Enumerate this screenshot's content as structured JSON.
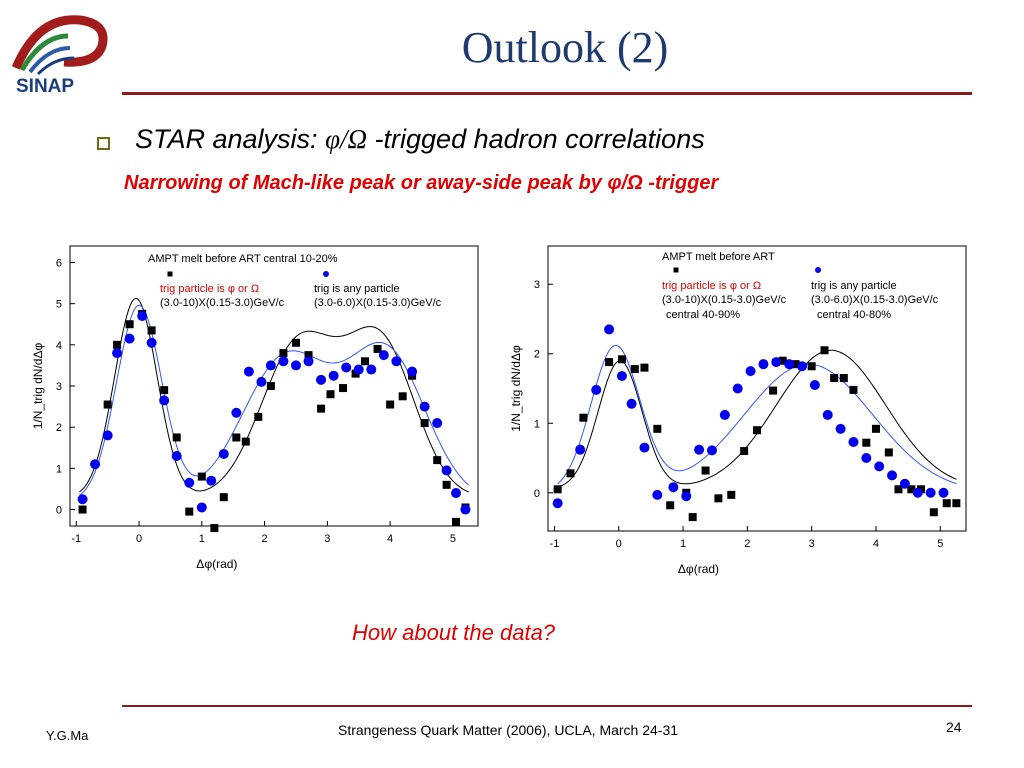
{
  "slide": {
    "title": "Outlook (2)",
    "logo_text": "SINAP",
    "bullet": {
      "prefix": "STAR analysis: ",
      "symbol": "φ/Ω",
      "suffix": " -trigged hadron correlations"
    },
    "subline": "Narrowing of Mach-like peak or away-side peak by φ/Ω -trigger",
    "question": "How about the data?",
    "footer": {
      "author": "Y.G.Ma",
      "conference": "Strangeness Quark Matter (2006),  UCLA, March 24-31",
      "page": "24"
    }
  },
  "colors": {
    "title": "#1f3a6e",
    "rule": "#8b1a1a",
    "highlight": "#e00000",
    "square_series": "#000000",
    "circle_series": "#0000ee"
  },
  "chart_data": [
    {
      "type": "scatter",
      "title": "AMPT melt before ART central 10-20%",
      "xlabel": "Δφ(rad)",
      "ylabel": "1/N_trig dN/dΔφ",
      "xlim": [
        -1.1,
        5.4
      ],
      "ylim": [
        -0.4,
        6.4
      ],
      "xticks": [
        -1,
        0,
        1,
        2,
        3,
        4,
        5
      ],
      "yticks": [
        0,
        1,
        2,
        3,
        4,
        5,
        6
      ],
      "legend": [
        {
          "marker": "square",
          "name": "trig particle is φ or Ω",
          "detail": "(3.0-10)X(0.15-3.0)GeV/c",
          "detail2": ""
        },
        {
          "marker": "circle",
          "name": "trig is any particle",
          "detail": "(3.0-6.0)X(0.15-3.0)GeV/c",
          "detail2": ""
        }
      ],
      "series": [
        {
          "name": "trig particle is φ or Ω",
          "marker": "square",
          "color": "#000000",
          "x": [
            -0.9,
            -0.5,
            -0.35,
            -0.15,
            0.05,
            0.2,
            0.4,
            0.6,
            0.8,
            1.0,
            1.2,
            1.35,
            1.55,
            1.7,
            1.9,
            2.1,
            2.3,
            2.5,
            2.7,
            2.9,
            3.05,
            3.25,
            3.45,
            3.6,
            3.8,
            4.0,
            4.2,
            4.35,
            4.55,
            4.75,
            4.9,
            5.05,
            5.2
          ],
          "y": [
            0.0,
            2.55,
            4.0,
            4.5,
            4.75,
            4.35,
            2.9,
            1.75,
            -0.05,
            0.8,
            -0.45,
            0.3,
            1.75,
            1.65,
            2.25,
            3.0,
            3.8,
            4.05,
            3.75,
            2.45,
            2.8,
            2.95,
            3.3,
            3.6,
            3.9,
            2.55,
            2.75,
            3.25,
            2.1,
            1.2,
            0.6,
            -0.3,
            0.05
          ]
        },
        {
          "name": "trig is any particle",
          "marker": "circle",
          "color": "#0000ee",
          "x": [
            -0.9,
            -0.7,
            -0.5,
            -0.35,
            -0.15,
            0.05,
            0.2,
            0.4,
            0.6,
            0.8,
            1.0,
            1.15,
            1.35,
            1.55,
            1.75,
            1.95,
            2.1,
            2.3,
            2.5,
            2.7,
            2.9,
            3.1,
            3.3,
            3.5,
            3.7,
            3.9,
            4.1,
            4.35,
            4.55,
            4.75,
            4.9,
            5.05,
            5.2
          ],
          "y": [
            0.25,
            1.1,
            1.8,
            3.8,
            4.15,
            4.7,
            4.05,
            2.65,
            1.3,
            0.65,
            0.05,
            0.7,
            1.35,
            2.35,
            3.35,
            3.1,
            3.5,
            3.6,
            3.5,
            3.6,
            3.15,
            3.25,
            3.45,
            3.4,
            3.4,
            3.75,
            3.6,
            3.35,
            2.5,
            2.1,
            0.95,
            0.4,
            0.0
          ]
        }
      ]
    },
    {
      "type": "scatter",
      "title": "AMPT melt before ART",
      "xlabel": "Δφ(rad)",
      "ylabel": "1/N_trig dN/dΔφ",
      "xlim": [
        -1.1,
        5.4
      ],
      "ylim": [
        -0.55,
        3.55
      ],
      "xticks": [
        -1,
        0,
        1,
        2,
        3,
        4,
        5
      ],
      "yticks": [
        0,
        1,
        2,
        3
      ],
      "legend": [
        {
          "marker": "square",
          "name": "trig particle is φ or Ω",
          "detail": "(3.0-10)X(0.15-3.0)GeV/c",
          "detail2": "central 40-90%"
        },
        {
          "marker": "circle",
          "name": "trig is any particle",
          "detail": "(3.0-6.0)X(0.15-3.0)GeV/c",
          "detail2": "central 40-80%"
        }
      ],
      "series": [
        {
          "name": "trig particle is φ or Ω",
          "marker": "square",
          "color": "#000000",
          "x": [
            -0.95,
            -0.75,
            -0.55,
            -0.15,
            0.05,
            0.25,
            0.4,
            0.6,
            0.8,
            1.05,
            1.15,
            1.35,
            1.55,
            1.75,
            1.95,
            2.15,
            2.4,
            2.55,
            2.75,
            3.0,
            3.2,
            3.35,
            3.5,
            3.65,
            3.85,
            4.0,
            4.2,
            4.35,
            4.55,
            4.7,
            4.9,
            5.1,
            5.25
          ],
          "y": [
            0.05,
            0.28,
            1.08,
            1.88,
            1.92,
            1.78,
            1.8,
            0.92,
            -0.18,
            0.0,
            -0.35,
            0.32,
            -0.08,
            -0.03,
            0.6,
            0.9,
            1.47,
            1.9,
            1.85,
            1.82,
            2.05,
            1.65,
            1.65,
            1.48,
            0.72,
            0.92,
            0.58,
            0.05,
            0.05,
            0.05,
            -0.28,
            -0.15,
            -0.15
          ]
        },
        {
          "name": "trig is any particle",
          "marker": "circle",
          "color": "#0000ee",
          "x": [
            -0.95,
            -0.6,
            -0.35,
            -0.15,
            0.05,
            0.2,
            0.4,
            0.6,
            0.85,
            1.05,
            1.25,
            1.45,
            1.65,
            1.85,
            2.05,
            2.25,
            2.45,
            2.65,
            2.85,
            3.05,
            3.25,
            3.45,
            3.65,
            3.85,
            4.05,
            4.25,
            4.45,
            4.65,
            4.85,
            5.05
          ],
          "y": [
            -0.15,
            0.62,
            1.48,
            2.35,
            1.68,
            1.28,
            0.65,
            -0.03,
            0.08,
            -0.05,
            0.62,
            0.61,
            1.12,
            1.5,
            1.75,
            1.85,
            1.88,
            1.85,
            1.82,
            1.55,
            1.12,
            0.92,
            0.73,
            0.5,
            0.38,
            0.25,
            0.13,
            0.0,
            0.0,
            0.0
          ]
        }
      ]
    }
  ]
}
